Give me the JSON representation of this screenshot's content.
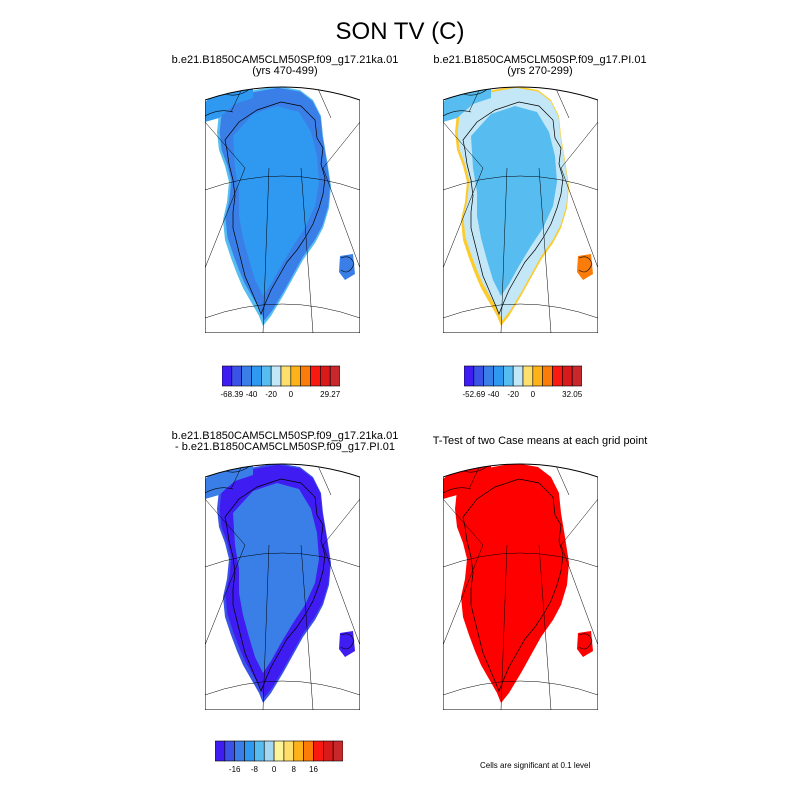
{
  "figure_title": "SON TV (C)",
  "panels": [
    {
      "id": "p1",
      "title_line1": "b.e21.B1850CAM5CLM50SP.f09_g17.21ka.01",
      "title_line2": "(yrs 470-499)",
      "palette": [
        "#3e1cf2",
        "#3a53e6",
        "#3a7fe8",
        "#2f98f0",
        "#57bdf0",
        "#c3e7f6",
        "#fedf6b",
        "#fdb21a",
        "#fb7c09",
        "#fa1910",
        "#d91a1a",
        "#c8272c"
      ],
      "fill_inner": "#2f98f0",
      "fill_outer": "#3a7fe8",
      "fill_edge": "#57bdf0",
      "colorbar_labels": [
        "-68.39",
        "-40",
        "-20",
        "0",
        "29.27"
      ]
    },
    {
      "id": "p2",
      "title_line1": "b.e21.B1850CAM5CLM50SP.f09_g17.PI.01",
      "title_line2": "(yrs 270-299)",
      "palette": [
        "#3e1cf2",
        "#3a53e6",
        "#3a7fe8",
        "#2f98f0",
        "#57bdf0",
        "#c3e7f6",
        "#fedf6b",
        "#fdb21a",
        "#fb7c09",
        "#fa1910",
        "#d91a1a",
        "#c8272c"
      ],
      "fill_inner": "#57bdf0",
      "fill_outer": "#c3e7f6",
      "fill_edge": "#fdcb2b",
      "colorbar_labels": [
        "-52.69",
        "-40",
        "-20",
        "0",
        "32.05"
      ]
    },
    {
      "id": "p3",
      "title_line1": "b.e21.B1850CAM5CLM50SP.f09_g17.21ka.01",
      "title_line2": "- b.e21.B1850CAM5CLM50SP.f09_g17.PI.01",
      "palette": [
        "#3e1cf2",
        "#3a53e6",
        "#3a7fe8",
        "#2f98f0",
        "#57bdf0",
        "#a4d8f2",
        "#fef59a",
        "#fedf6b",
        "#fdb21a",
        "#fb7c09",
        "#fa1910",
        "#d91a1a",
        "#c8272c"
      ],
      "fill_inner": "#3a7fe8",
      "fill_outer": "#3e1cf2",
      "fill_edge": "#3a53e6",
      "colorbar_labels": [
        "-16",
        "-8",
        "0",
        "8",
        "16"
      ]
    },
    {
      "id": "p4",
      "title_line1": "T-Test of two Case means at each grid point",
      "title_line2": "",
      "fill_inner": "#ff0000",
      "fill_outer": "#ff0000",
      "fill_edge": "#ff0000",
      "note": "Cells are significant at 0.1 level"
    }
  ]
}
